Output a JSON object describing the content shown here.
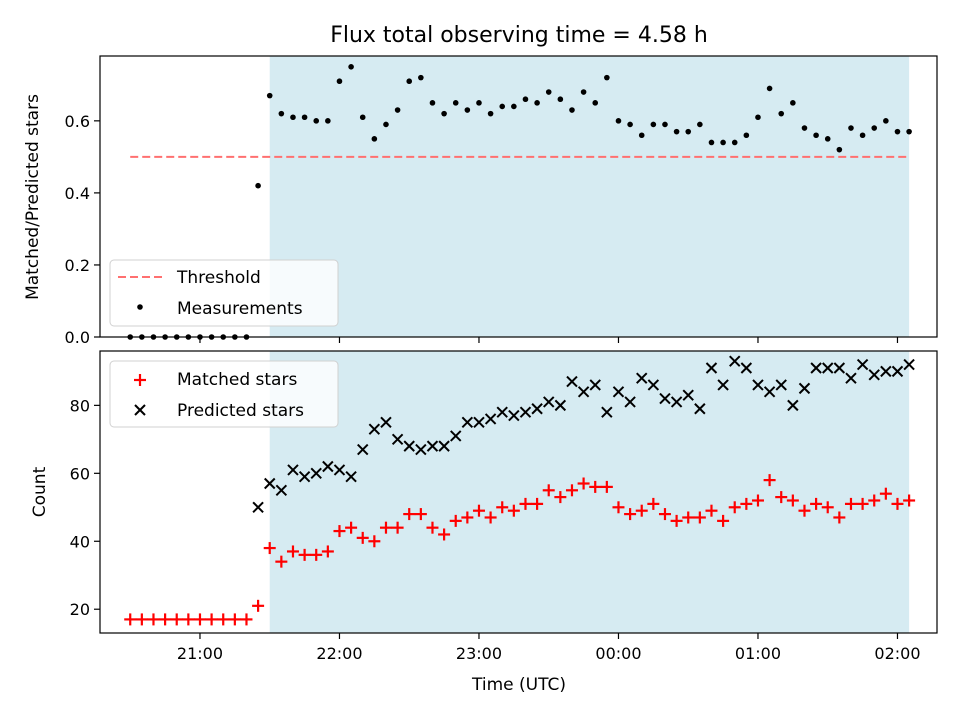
{
  "chart_data": [
    {
      "type": "scatter",
      "title": "Flux total observing time = 4.58 h",
      "xlabel": "",
      "ylabel": "Matched/Predicted stars",
      "ylim": [
        0,
        0.78
      ],
      "yticks": [
        "0.0",
        "0.2",
        "0.4",
        "0.6"
      ],
      "observing_window": [
        "21:30",
        "02:05"
      ],
      "threshold": {
        "name": "Threshold",
        "value": 0.5,
        "x_start": "20:30",
        "x_end": "02:05",
        "color": "#ff7070"
      },
      "legend": {
        "position": "lower-left",
        "entries": [
          "Threshold",
          "Measurements"
        ]
      },
      "series": [
        {
          "name": "Measurements",
          "color": "#000000",
          "points": [
            [
              "20:30",
              0
            ],
            [
              "20:35",
              0
            ],
            [
              "20:40",
              0
            ],
            [
              "20:45",
              0
            ],
            [
              "20:50",
              0
            ],
            [
              "20:55",
              0
            ],
            [
              "21:00",
              0
            ],
            [
              "21:05",
              0
            ],
            [
              "21:10",
              0
            ],
            [
              "21:15",
              0
            ],
            [
              "21:20",
              0
            ],
            [
              "21:25",
              0.42
            ],
            [
              "21:30",
              0.67
            ],
            [
              "21:35",
              0.62
            ],
            [
              "21:40",
              0.61
            ],
            [
              "21:45",
              0.61
            ],
            [
              "21:50",
              0.6
            ],
            [
              "21:55",
              0.6
            ],
            [
              "22:00",
              0.71
            ],
            [
              "22:05",
              0.75
            ],
            [
              "22:10",
              0.61
            ],
            [
              "22:15",
              0.55
            ],
            [
              "22:20",
              0.59
            ],
            [
              "22:25",
              0.63
            ],
            [
              "22:30",
              0.71
            ],
            [
              "22:35",
              0.72
            ],
            [
              "22:40",
              0.65
            ],
            [
              "22:45",
              0.62
            ],
            [
              "22:50",
              0.65
            ],
            [
              "22:55",
              0.63
            ],
            [
              "23:00",
              0.65
            ],
            [
              "23:05",
              0.62
            ],
            [
              "23:10",
              0.64
            ],
            [
              "23:15",
              0.64
            ],
            [
              "23:20",
              0.66
            ],
            [
              "23:25",
              0.65
            ],
            [
              "23:30",
              0.68
            ],
            [
              "23:35",
              0.66
            ],
            [
              "23:40",
              0.63
            ],
            [
              "23:45",
              0.68
            ],
            [
              "23:50",
              0.65
            ],
            [
              "23:55",
              0.72
            ],
            [
              "00:00",
              0.6
            ],
            [
              "00:05",
              0.59
            ],
            [
              "00:10",
              0.56
            ],
            [
              "00:15",
              0.59
            ],
            [
              "00:20",
              0.59
            ],
            [
              "00:25",
              0.57
            ],
            [
              "00:30",
              0.57
            ],
            [
              "00:35",
              0.59
            ],
            [
              "00:40",
              0.54
            ],
            [
              "00:45",
              0.54
            ],
            [
              "00:50",
              0.54
            ],
            [
              "00:55",
              0.56
            ],
            [
              "01:00",
              0.61
            ],
            [
              "01:05",
              0.69
            ],
            [
              "01:10",
              0.62
            ],
            [
              "01:15",
              0.65
            ],
            [
              "01:20",
              0.58
            ],
            [
              "01:25",
              0.56
            ],
            [
              "01:30",
              0.55
            ],
            [
              "01:35",
              0.52
            ],
            [
              "01:40",
              0.58
            ],
            [
              "01:45",
              0.56
            ],
            [
              "01:50",
              0.58
            ],
            [
              "01:55",
              0.6
            ],
            [
              "02:00",
              0.57
            ],
            [
              "02:05",
              0.57
            ]
          ]
        }
      ]
    },
    {
      "type": "scatter",
      "title": "",
      "xlabel": "Time (UTC)",
      "ylabel": "Count",
      "ylim": [
        13,
        96
      ],
      "yticks": [
        "20",
        "40",
        "60",
        "80"
      ],
      "xticks": [
        "21:00",
        "22:00",
        "23:00",
        "00:00",
        "01:00",
        "02:00"
      ],
      "observing_window": [
        "21:30",
        "02:05"
      ],
      "legend": {
        "position": "top-left",
        "entries": [
          "Matched stars",
          "Predicted stars"
        ]
      },
      "series": [
        {
          "name": "Matched stars",
          "marker": "plus",
          "color": "#ff0000",
          "points": [
            [
              "20:30",
              17
            ],
            [
              "20:35",
              17
            ],
            [
              "20:40",
              17
            ],
            [
              "20:45",
              17
            ],
            [
              "20:50",
              17
            ],
            [
              "20:55",
              17
            ],
            [
              "21:00",
              17
            ],
            [
              "21:05",
              17
            ],
            [
              "21:10",
              17
            ],
            [
              "21:15",
              17
            ],
            [
              "21:20",
              17
            ],
            [
              "21:25",
              21
            ],
            [
              "21:30",
              38
            ],
            [
              "21:35",
              34
            ],
            [
              "21:40",
              37
            ],
            [
              "21:45",
              36
            ],
            [
              "21:50",
              36
            ],
            [
              "21:55",
              37
            ],
            [
              "22:00",
              43
            ],
            [
              "22:05",
              44
            ],
            [
              "22:10",
              41
            ],
            [
              "22:15",
              40
            ],
            [
              "22:20",
              44
            ],
            [
              "22:25",
              44
            ],
            [
              "22:30",
              48
            ],
            [
              "22:35",
              48
            ],
            [
              "22:40",
              44
            ],
            [
              "22:45",
              42
            ],
            [
              "22:50",
              46
            ],
            [
              "22:55",
              47
            ],
            [
              "23:00",
              49
            ],
            [
              "23:05",
              47
            ],
            [
              "23:10",
              50
            ],
            [
              "23:15",
              49
            ],
            [
              "23:20",
              51
            ],
            [
              "23:25",
              51
            ],
            [
              "23:30",
              55
            ],
            [
              "23:35",
              53
            ],
            [
              "23:40",
              55
            ],
            [
              "23:45",
              57
            ],
            [
              "23:50",
              56
            ],
            [
              "23:55",
              56
            ],
            [
              "00:00",
              50
            ],
            [
              "00:05",
              48
            ],
            [
              "00:10",
              49
            ],
            [
              "00:15",
              51
            ],
            [
              "00:20",
              48
            ],
            [
              "00:25",
              46
            ],
            [
              "00:30",
              47
            ],
            [
              "00:35",
              47
            ],
            [
              "00:40",
              49
            ],
            [
              "00:45",
              46
            ],
            [
              "00:50",
              50
            ],
            [
              "00:55",
              51
            ],
            [
              "01:00",
              52
            ],
            [
              "01:05",
              58
            ],
            [
              "01:10",
              53
            ],
            [
              "01:15",
              52
            ],
            [
              "01:20",
              49
            ],
            [
              "01:25",
              51
            ],
            [
              "01:30",
              50
            ],
            [
              "01:35",
              47
            ],
            [
              "01:40",
              51
            ],
            [
              "01:45",
              51
            ],
            [
              "01:50",
              52
            ],
            [
              "01:55",
              54
            ],
            [
              "02:00",
              51
            ],
            [
              "02:05",
              52
            ]
          ]
        },
        {
          "name": "Predicted stars",
          "marker": "x",
          "color": "#000000",
          "points": [
            [
              "21:25",
              50
            ],
            [
              "21:30",
              57
            ],
            [
              "21:35",
              55
            ],
            [
              "21:40",
              61
            ],
            [
              "21:45",
              59
            ],
            [
              "21:50",
              60
            ],
            [
              "21:55",
              62
            ],
            [
              "22:00",
              61
            ],
            [
              "22:05",
              59
            ],
            [
              "22:10",
              67
            ],
            [
              "22:15",
              73
            ],
            [
              "22:20",
              75
            ],
            [
              "22:25",
              70
            ],
            [
              "22:30",
              68
            ],
            [
              "22:35",
              67
            ],
            [
              "22:40",
              68
            ],
            [
              "22:45",
              68
            ],
            [
              "22:50",
              71
            ],
            [
              "22:55",
              75
            ],
            [
              "23:00",
              75
            ],
            [
              "23:05",
              76
            ],
            [
              "23:10",
              78
            ],
            [
              "23:15",
              77
            ],
            [
              "23:20",
              78
            ],
            [
              "23:25",
              79
            ],
            [
              "23:30",
              81
            ],
            [
              "23:35",
              80
            ],
            [
              "23:40",
              87
            ],
            [
              "23:45",
              84
            ],
            [
              "23:50",
              86
            ],
            [
              "23:55",
              78
            ],
            [
              "00:00",
              84
            ],
            [
              "00:05",
              81
            ],
            [
              "00:10",
              88
            ],
            [
              "00:15",
              86
            ],
            [
              "00:20",
              82
            ],
            [
              "00:25",
              81
            ],
            [
              "00:30",
              83
            ],
            [
              "00:35",
              79
            ],
            [
              "00:40",
              91
            ],
            [
              "00:45",
              86
            ],
            [
              "00:50",
              93
            ],
            [
              "00:55",
              91
            ],
            [
              "01:00",
              86
            ],
            [
              "01:05",
              84
            ],
            [
              "01:10",
              86
            ],
            [
              "01:15",
              80
            ],
            [
              "01:20",
              85
            ],
            [
              "01:25",
              91
            ],
            [
              "01:30",
              91
            ],
            [
              "01:35",
              91
            ],
            [
              "01:40",
              88
            ],
            [
              "01:45",
              92
            ],
            [
              "01:50",
              89
            ],
            [
              "01:55",
              90
            ],
            [
              "02:00",
              90
            ],
            [
              "02:05",
              92
            ]
          ]
        }
      ]
    }
  ]
}
